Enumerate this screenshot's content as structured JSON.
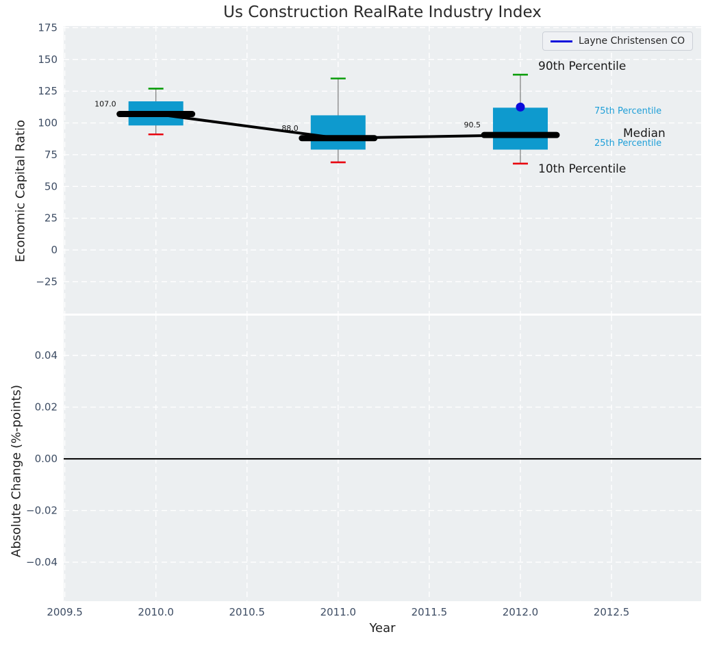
{
  "chart_data": [
    {
      "type": "boxplot",
      "title": "Us Construction RealRate Industry Index",
      "ylabel": "Economic Capital Ratio",
      "xlabel": "Year",
      "grid": true,
      "xlim": [
        2009.494,
        2012.992
      ],
      "ylim": [
        -50.1,
        176.3
      ],
      "xticks": [
        2009.5,
        2010.0,
        2010.5,
        2011.0,
        2011.5,
        2012.0,
        2012.5
      ],
      "xtick_labels": [
        "2009.5",
        "2010.0",
        "2010.5",
        "2011.0",
        "2011.5",
        "2012.0",
        "2012.5"
      ],
      "yticks": [
        175,
        150,
        125,
        100,
        75,
        50,
        25,
        0,
        -25
      ],
      "ytick_labels": [
        "175",
        "150",
        "125",
        "100",
        "75",
        "50",
        "25",
        "0",
        "−25"
      ],
      "legend": {
        "labels": [
          "Layne Christensen CO"
        ],
        "position": "upper right"
      },
      "boxes": [
        {
          "year": 2010,
          "p10": 91,
          "p25": 98,
          "median": 107.0,
          "p75": 117,
          "p90": 127,
          "median_label": "107.0"
        },
        {
          "year": 2011,
          "p10": 69,
          "p25": 79,
          "median": 88.0,
          "p75": 106,
          "p90": 135,
          "median_label": "88.0"
        },
        {
          "year": 2012,
          "p10": 68,
          "p25": 79,
          "median": 90.5,
          "p75": 112,
          "p90": 138,
          "median_label": "90.5"
        }
      ],
      "series": [
        {
          "name": "Layne Christensen CO",
          "x": [
            2012
          ],
          "y": [
            112.5
          ],
          "marker": "circle"
        }
      ],
      "annotations": {
        "p90": "90th Percentile",
        "p75": "75th Percentile",
        "median": "Median",
        "p25": "25th Percentile",
        "p10": "10th Percentile"
      }
    },
    {
      "type": "line",
      "title": "",
      "ylabel": "Absolute Change (%-points)",
      "xlabel": "Year",
      "grid": true,
      "zero_line": true,
      "xlim": [
        2009.494,
        2012.992
      ],
      "ylim": [
        -0.0551,
        0.0554
      ],
      "xticks": [
        2009.5,
        2010.0,
        2010.5,
        2011.0,
        2011.5,
        2012.0,
        2012.5
      ],
      "xtick_labels": [
        "2009.5",
        "2010.0",
        "2010.5",
        "2011.0",
        "2011.5",
        "2012.0",
        "2012.5"
      ],
      "yticks": [
        0.04,
        0.02,
        0,
        -0.02,
        -0.04
      ],
      "ytick_labels": [
        "0.04",
        "0.02",
        "0.00",
        "−0.02",
        "−0.04"
      ],
      "series": []
    }
  ],
  "colors": {
    "plot_bg": "#eceff1",
    "grid": "#ffffff",
    "box_fill": "#0e9ace",
    "whisker": "#7a7a7a",
    "cap_high": "#0a9d0a",
    "cap_low": "#e8000d",
    "median_line": "#000000",
    "company_marker": "#0b0bdb",
    "zero_line": "#000000",
    "tick_text": "#3d4c63",
    "percentile_label": "#1f9fd8"
  }
}
